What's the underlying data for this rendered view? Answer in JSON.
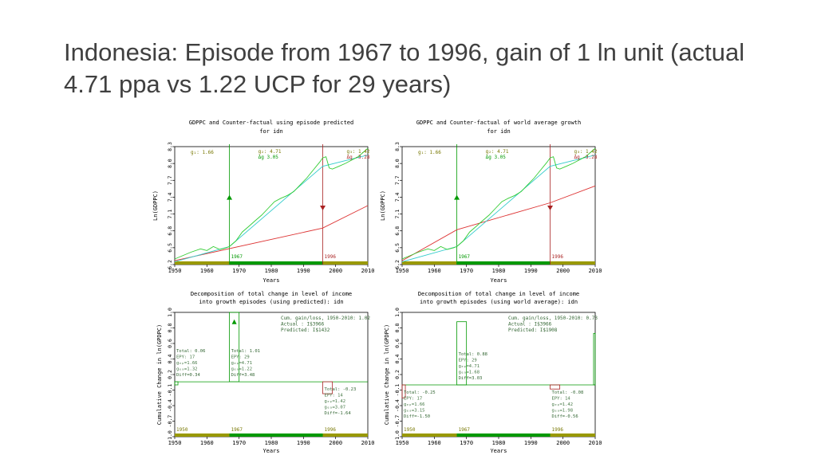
{
  "slide": {
    "title": "Indonesia:  Episode from 1967 to 1996, gain of 1 ln unit (actual 4.71 ppa vs 1.22 UCP for 29 years)"
  },
  "colors": {
    "actual": "#33cc33",
    "trend": "#33cccc",
    "counterfactual": "#dd3333",
    "axis": "#000000",
    "olive": "#999900",
    "green_bar": "#009900"
  },
  "chart_data": [
    {
      "type": "line",
      "title": "GDPPC and Counter-factual using episode predicted",
      "subtitle": "for idn",
      "xlabel": "Years",
      "ylabel": "Ln(GDPPC)",
      "xlim": [
        1950,
        2010
      ],
      "ylim": [
        6.2,
        8.3
      ],
      "xticks": [
        "1950",
        "1960",
        "1970",
        "1980",
        "1990",
        "2000",
        "2010"
      ],
      "yticks": [
        "6.2",
        "6.5",
        "6.8",
        "7.1",
        "7.4",
        "7.7",
        "8.0",
        "8.3"
      ],
      "annotations": {
        "g1": "g₁: 1.66",
        "g2": "g₂: 4.71",
        "dg2": "Δg 3.05",
        "g3": "g₃: 1.42",
        "dg3": "Δg -3.28",
        "year1": "1967",
        "year2": "1996"
      },
      "episode_years": [
        1967,
        1996
      ],
      "counterfactual": {
        "x": [
          1950,
          1996,
          2010
        ],
        "y": [
          6.27,
          6.85,
          7.25
        ]
      }
    },
    {
      "type": "line",
      "title": "GDPPC and Counter-factual of world average growth",
      "subtitle": "for idn",
      "xlabel": "Years",
      "ylabel": "Ln(GDPPC)",
      "xlim": [
        1950,
        2010
      ],
      "ylim": [
        6.2,
        8.3
      ],
      "xticks": [
        "1950",
        "1960",
        "1970",
        "1980",
        "1990",
        "2000",
        "2010"
      ],
      "yticks": [
        "6.2",
        "6.5",
        "6.8",
        "7.1",
        "7.4",
        "7.7",
        "8.0",
        "8.3"
      ],
      "annotations": {
        "g1": "g₁: 1.66",
        "g2": "g₂: 4.71",
        "dg2": "Δg 3.05",
        "g3": "g₃: 1.42",
        "dg3": "Δg -3.28",
        "year1": "1967",
        "year2": "1996"
      },
      "episode_years": [
        1967,
        1996
      ],
      "counterfactual": {
        "x": [
          1950,
          1967,
          1996,
          2010
        ],
        "y": [
          6.27,
          6.82,
          7.3,
          7.6
        ]
      }
    },
    {
      "type": "bar",
      "title": "Decomposition of total change in level of income",
      "subtitle": "into growth episodes (using predicted): idn",
      "xlabel": "Years",
      "ylabel": "Cumulative Change in ln(GPDPC)",
      "xlim": [
        1950,
        2010
      ],
      "ylim": [
        -1.0,
        1.0
      ],
      "xticks": [
        "1950",
        "1960",
        "1970",
        "1980",
        "1990",
        "2000",
        "2010"
      ],
      "yticks": [
        "-1.0",
        "-0.7",
        "-0.4",
        "-0.1",
        "0.2",
        "0.4",
        "0.6",
        "0.8",
        "1.0"
      ],
      "summary": [
        "Cum. gain/loss, 1950-2010: 1.02",
        "Actual    : I$3966",
        "Predicted: I$1432"
      ],
      "episodes": [
        {
          "start": 1950,
          "end": 1951,
          "value": 0.06,
          "lines": [
            "Total: 0.06",
            "EPY: 17",
            "gₑₚ=1.66",
            "gₑₐ=1.32",
            "Diff=0.34"
          ]
        },
        {
          "start": 1967,
          "end": 1970,
          "value": 1.01,
          "lines": [
            "Total: 1.01",
            "EPY: 29",
            "gₑₚ=4.71",
            "gₑₐ=1.22",
            "Diff=3.48"
          ]
        },
        {
          "start": 1996,
          "end": 1999,
          "value": -0.23,
          "lines": [
            "Total: -0.23",
            "EPY: 14",
            "gₑₚ=1.42",
            "gₑₐ=3.07",
            "Diff=-1.64"
          ]
        }
      ],
      "year_labels": [
        "1950",
        "1967",
        "1996"
      ]
    },
    {
      "type": "bar",
      "title": "Decomposition of total change in level of income",
      "subtitle": "into growth episodes (using world average): idn",
      "xlabel": "Years",
      "ylabel": "Cumulative Change in ln(GPDPC)",
      "xlim": [
        1950,
        2010
      ],
      "ylim": [
        -1.0,
        1.0
      ],
      "xticks": [
        "1950",
        "1960",
        "1970",
        "1980",
        "1990",
        "2000",
        "2010"
      ],
      "yticks": [
        "-1.0",
        "-0.7",
        "-0.4",
        "-0.1",
        "0.2",
        "0.4",
        "0.6",
        "0.8",
        "1.0"
      ],
      "summary": [
        "Cum. gain/loss, 1950-2010: 0.73",
        "Actual    : I$3966",
        "Predicted: I$1908"
      ],
      "episodes": [
        {
          "start": 1950,
          "end": 1951,
          "value": -0.25,
          "lines": [
            "Total: -0.25",
            "EPY: 17",
            "gₑₚ=1.66",
            "gₑₐ=3.15",
            "Diff=-1.50"
          ]
        },
        {
          "start": 1967,
          "end": 1970,
          "value": 0.88,
          "lines": [
            "Total: 0.88",
            "EPY: 29",
            "gₑₚ=4.71",
            "gₑₐ=1.68",
            "Diff=3.03"
          ]
        },
        {
          "start": 1996,
          "end": 1999,
          "value": -0.08,
          "lines": [
            "Total: -0.08",
            "EPY: 14",
            "gₑₚ=1.42",
            "gₑₐ=1.98",
            "Diff=-0.56"
          ]
        }
      ],
      "right_bar_value": 0.73,
      "year_labels": [
        "1950",
        "1967",
        "1996"
      ]
    }
  ]
}
